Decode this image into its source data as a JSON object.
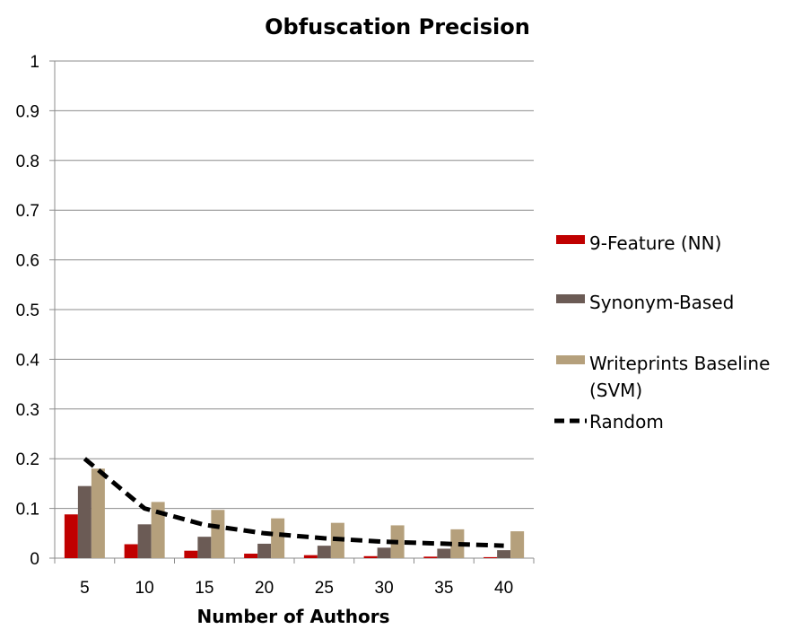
{
  "chart_data": {
    "type": "bar",
    "title": "Obfuscation Precision",
    "xlabel": "Number of Authors",
    "ylabel": "",
    "ylim": [
      0,
      1
    ],
    "yticks": [
      "0",
      "0.1",
      "0.2",
      "0.3",
      "0.4",
      "0.5",
      "0.6",
      "0.7",
      "0.8",
      "0.9",
      "1"
    ],
    "categories": [
      "5",
      "10",
      "15",
      "20",
      "25",
      "30",
      "35",
      "40"
    ],
    "series": [
      {
        "name": "9-Feature (NN)",
        "type": "bar",
        "color": "#c00000",
        "values": [
          0.088,
          0.028,
          0.015,
          0.009,
          0.006,
          0.004,
          0.003,
          0.002
        ]
      },
      {
        "name": "Synonym-Based",
        "type": "bar",
        "color": "#6b5b55",
        "values": [
          0.145,
          0.068,
          0.043,
          0.029,
          0.025,
          0.021,
          0.019,
          0.016
        ]
      },
      {
        "name": "Writeprints Baseline (SVM)",
        "type": "bar",
        "color": "#b5a07c",
        "values": [
          0.18,
          0.113,
          0.097,
          0.08,
          0.071,
          0.066,
          0.058,
          0.054
        ]
      },
      {
        "name": "Random",
        "type": "line",
        "style": "dashed",
        "color": "#000000",
        "values": [
          0.2,
          0.1,
          0.067,
          0.05,
          0.04,
          0.033,
          0.029,
          0.025
        ]
      }
    ],
    "legend": {
      "position": "right",
      "items": [
        {
          "line1": "9-Feature (NN)",
          "line2": ""
        },
        {
          "line1": "Synonym-Based",
          "line2": ""
        },
        {
          "line1": "Writeprints Baseline",
          "line2": "(SVM)"
        },
        {
          "line1": "Random",
          "line2": ""
        }
      ]
    },
    "grid": true
  }
}
